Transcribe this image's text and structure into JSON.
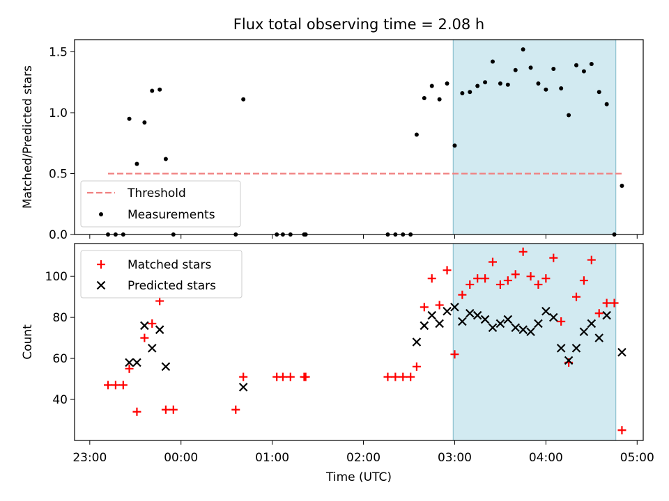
{
  "title": "Flux total observing time = 2.08 h",
  "colors": {
    "threshold": "#f08080",
    "measurement": "#000000",
    "matched": "#ff0000",
    "predicted": "#000000",
    "highlight": "#add8e6"
  },
  "chart_data": [
    {
      "type": "scatter",
      "title": "Flux total observing time = 2.08 h",
      "xlabel": "",
      "ylabel": "Matched/Predicted stars",
      "ylim": [
        0,
        1.6
      ],
      "yticks": [
        0.0,
        0.5,
        1.0,
        1.5
      ],
      "yticklabels": [
        "0.0",
        "0.5",
        "1.0",
        "1.5"
      ],
      "grid": false,
      "legend_position": "bottom-left",
      "highlight_span": [
        "02:59",
        "04:46"
      ],
      "series": [
        {
          "name": "Threshold",
          "kind": "dashed-line",
          "x": [
            "23:12",
            "04:50"
          ],
          "y": [
            0.5,
            0.5
          ]
        },
        {
          "name": "Measurements",
          "kind": "points",
          "points": [
            [
              "23:12",
              0
            ],
            [
              "23:17",
              0
            ],
            [
              "23:22",
              0
            ],
            [
              "23:26",
              0.95
            ],
            [
              "23:31",
              0.58
            ],
            [
              "23:36",
              0.92
            ],
            [
              "23:41",
              1.18
            ],
            [
              "23:46",
              1.19
            ],
            [
              "23:50",
              0.62
            ],
            [
              "23:55",
              0
            ],
            [
              "00:36",
              0
            ],
            [
              "00:41",
              1.11
            ],
            [
              "01:03",
              0
            ],
            [
              "01:07",
              0
            ],
            [
              "01:12",
              0
            ],
            [
              "01:21",
              0
            ],
            [
              "01:22",
              0
            ],
            [
              "02:16",
              0
            ],
            [
              "02:21",
              0
            ],
            [
              "02:26",
              0
            ],
            [
              "02:31",
              0
            ],
            [
              "02:35",
              0.82
            ],
            [
              "02:40",
              1.12
            ],
            [
              "02:45",
              1.22
            ],
            [
              "02:50",
              1.11
            ],
            [
              "02:55",
              1.24
            ],
            [
              "03:00",
              0.73
            ],
            [
              "03:05",
              1.16
            ],
            [
              "03:10",
              1.17
            ],
            [
              "03:15",
              1.22
            ],
            [
              "03:20",
              1.25
            ],
            [
              "03:25",
              1.42
            ],
            [
              "03:30",
              1.24
            ],
            [
              "03:35",
              1.23
            ],
            [
              "03:40",
              1.35
            ],
            [
              "03:45",
              1.52
            ],
            [
              "03:50",
              1.37
            ],
            [
              "03:55",
              1.24
            ],
            [
              "04:00",
              1.19
            ],
            [
              "04:05",
              1.36
            ],
            [
              "04:10",
              1.2
            ],
            [
              "04:15",
              0.98
            ],
            [
              "04:20",
              1.39
            ],
            [
              "04:25",
              1.34
            ],
            [
              "04:30",
              1.4
            ],
            [
              "04:35",
              1.17
            ],
            [
              "04:40",
              1.07
            ],
            [
              "04:45",
              0
            ],
            [
              "04:50",
              0.4
            ]
          ]
        }
      ]
    },
    {
      "type": "scatter",
      "xlabel": "Time (UTC)",
      "ylabel": "Count",
      "ylim": [
        20,
        116
      ],
      "yticks": [
        40,
        60,
        80,
        100
      ],
      "yticklabels": [
        "40",
        "60",
        "80",
        "100"
      ],
      "xticks": [
        "23:00",
        "00:00",
        "01:00",
        "02:00",
        "03:00",
        "04:00",
        "05:00"
      ],
      "grid": false,
      "legend_position": "top-left",
      "highlight_span": [
        "02:59",
        "04:46"
      ],
      "series": [
        {
          "name": "Matched stars",
          "marker": "plus",
          "points": [
            [
              "23:12",
              47
            ],
            [
              "23:17",
              47
            ],
            [
              "23:22",
              47
            ],
            [
              "23:26",
              55
            ],
            [
              "23:31",
              34
            ],
            [
              "23:36",
              70
            ],
            [
              "23:41",
              77
            ],
            [
              "23:46",
              88
            ],
            [
              "23:50",
              35
            ],
            [
              "23:55",
              35
            ],
            [
              "00:36",
              35
            ],
            [
              "00:41",
              51
            ],
            [
              "01:03",
              51
            ],
            [
              "01:07",
              51
            ],
            [
              "01:12",
              51
            ],
            [
              "01:21",
              51
            ],
            [
              "01:22",
              51
            ],
            [
              "02:16",
              51
            ],
            [
              "02:21",
              51
            ],
            [
              "02:26",
              51
            ],
            [
              "02:31",
              51
            ],
            [
              "02:35",
              56
            ],
            [
              "02:40",
              85
            ],
            [
              "02:45",
              99
            ],
            [
              "02:50",
              86
            ],
            [
              "02:55",
              103
            ],
            [
              "03:00",
              62
            ],
            [
              "03:05",
              91
            ],
            [
              "03:10",
              96
            ],
            [
              "03:15",
              99
            ],
            [
              "03:20",
              99
            ],
            [
              "03:25",
              107
            ],
            [
              "03:30",
              96
            ],
            [
              "03:35",
              98
            ],
            [
              "03:40",
              101
            ],
            [
              "03:45",
              112
            ],
            [
              "03:50",
              100
            ],
            [
              "03:55",
              96
            ],
            [
              "04:00",
              99
            ],
            [
              "04:05",
              109
            ],
            [
              "04:10",
              78
            ],
            [
              "04:15",
              58
            ],
            [
              "04:20",
              90
            ],
            [
              "04:25",
              98
            ],
            [
              "04:30",
              108
            ],
            [
              "04:35",
              82
            ],
            [
              "04:40",
              87
            ],
            [
              "04:45",
              87
            ],
            [
              "04:50",
              25
            ]
          ]
        },
        {
          "name": "Predicted stars",
          "marker": "x",
          "points": [
            [
              "23:26",
              58
            ],
            [
              "23:31",
              58
            ],
            [
              "23:36",
              76
            ],
            [
              "23:41",
              65
            ],
            [
              "23:46",
              74
            ],
            [
              "23:50",
              56
            ],
            [
              "00:41",
              46
            ],
            [
              "02:35",
              68
            ],
            [
              "02:40",
              76
            ],
            [
              "02:45",
              81
            ],
            [
              "02:50",
              77
            ],
            [
              "02:55",
              83
            ],
            [
              "03:00",
              85
            ],
            [
              "03:05",
              78
            ],
            [
              "03:10",
              82
            ],
            [
              "03:15",
              81
            ],
            [
              "03:20",
              79
            ],
            [
              "03:25",
              75
            ],
            [
              "03:30",
              77
            ],
            [
              "03:35",
              79
            ],
            [
              "03:40",
              75
            ],
            [
              "03:45",
              74
            ],
            [
              "03:50",
              73
            ],
            [
              "03:55",
              77
            ],
            [
              "04:00",
              83
            ],
            [
              "04:05",
              80
            ],
            [
              "04:10",
              65
            ],
            [
              "04:15",
              59
            ],
            [
              "04:20",
              65
            ],
            [
              "04:25",
              73
            ],
            [
              "04:30",
              77
            ],
            [
              "04:35",
              70
            ],
            [
              "04:40",
              81
            ],
            [
              "04:50",
              63
            ]
          ]
        }
      ]
    }
  ]
}
